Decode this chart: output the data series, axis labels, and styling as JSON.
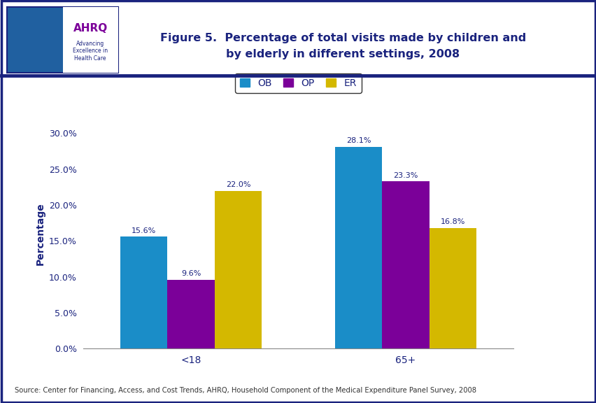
{
  "title_line1": "Figure 5.  Percentage of total visits made by children and",
  "title_line2": "by elderly in different settings, 2008",
  "categories": [
    "<18",
    "65+"
  ],
  "series": {
    "OB": [
      15.6,
      28.1
    ],
    "OP": [
      9.6,
      23.3
    ],
    "ER": [
      22.0,
      16.8
    ]
  },
  "colors": {
    "OB": "#1A8DC8",
    "OP": "#7B0099",
    "ER": "#D4B800"
  },
  "ylabel": "Percentage",
  "ylim": [
    0,
    32
  ],
  "yticks": [
    0.0,
    5.0,
    10.0,
    15.0,
    20.0,
    25.0,
    30.0
  ],
  "ytick_labels": [
    "0.0%",
    "5.0%",
    "10.0%",
    "15.0%",
    "20.0%",
    "25.0%",
    "30.0%"
  ],
  "bar_width": 0.22,
  "source_text": "Source: Center for Financing, Access, and Cost Trends, AHRQ, Household Component of the Medical Expenditure Panel Survey, 2008",
  "title_color": "#1A237E",
  "axis_label_color": "#1A237E",
  "tick_label_color": "#1A237E",
  "background_color": "#FFFFFF",
  "border_color": "#1A237E"
}
